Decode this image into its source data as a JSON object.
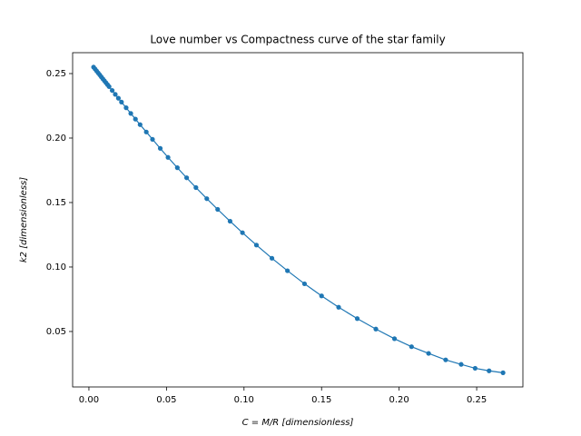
{
  "chart_data": {
    "type": "line",
    "title": "Love number vs Compactness curve of the star family",
    "x_label": "C = M/R [dimensionless]",
    "y_label": "k2 [dimensionless]",
    "color": "#1f77b4",
    "markers": true,
    "x": [
      0.003,
      0.004,
      0.005,
      0.006,
      0.007,
      0.008,
      0.009,
      0.01,
      0.011,
      0.012,
      0.013,
      0.015,
      0.017,
      0.019,
      0.021,
      0.024,
      0.027,
      0.03,
      0.033,
      0.037,
      0.041,
      0.046,
      0.051,
      0.057,
      0.063,
      0.069,
      0.076,
      0.083,
      0.091,
      0.099,
      0.108,
      0.118,
      0.128,
      0.139,
      0.15,
      0.161,
      0.173,
      0.185,
      0.197,
      0.208,
      0.219,
      0.23,
      0.24,
      0.249,
      0.258,
      0.267
    ],
    "values": [
      0.255,
      0.2535,
      0.252,
      0.2505,
      0.249,
      0.2474,
      0.2459,
      0.2444,
      0.2429,
      0.2414,
      0.2399,
      0.2369,
      0.2339,
      0.2309,
      0.2279,
      0.2235,
      0.2191,
      0.2147,
      0.2104,
      0.2047,
      0.199,
      0.192,
      0.185,
      0.177,
      0.1692,
      0.1616,
      0.153,
      0.1447,
      0.1355,
      0.1266,
      0.117,
      0.1068,
      0.0971,
      0.087,
      0.0776,
      0.0688,
      0.06,
      0.0519,
      0.0444,
      0.0382,
      0.033,
      0.028,
      0.0245,
      0.0215,
      0.0195,
      0.018
    ],
    "xlim": [
      -0.0105,
      0.2798
    ],
    "ylim": [
      0.007,
      0.2662
    ],
    "xticks": [
      {
        "value": 0,
        "label": "0.00"
      },
      0.05,
      {
        "value": 0.1,
        "label": "0.10"
      },
      0.15,
      {
        "value": 0.2,
        "label": "0.20"
      },
      0.25
    ],
    "yticks": [
      0.05,
      {
        "value": 0.1,
        "label": "0.10"
      },
      0.15,
      {
        "value": 0.2,
        "label": "0.20"
      },
      0.25
    ]
  }
}
